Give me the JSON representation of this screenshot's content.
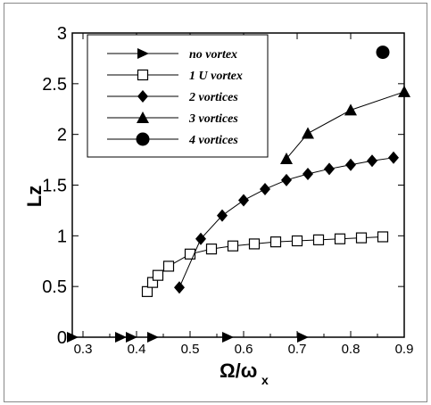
{
  "chart_data": {
    "type": "line",
    "title": "",
    "xlabel": "Ω/ω",
    "xlabel_sub": "x",
    "ylabel": "Lz",
    "xlim": [
      0.28,
      0.9
    ],
    "ylim": [
      0,
      3
    ],
    "xticks": [
      "0.3",
      "0.4",
      "0.5",
      "0.6",
      "0.7",
      "0.8",
      "0.9"
    ],
    "yticks": [
      "0",
      "0.5",
      "1",
      "1.5",
      "2",
      "2.5",
      "3"
    ],
    "grid": false,
    "legend_position": "top-left",
    "series": [
      {
        "name": "no vortex",
        "marker": "triangle-right",
        "x": [
          0.28,
          0.37,
          0.39,
          0.43,
          0.57,
          0.71
        ],
        "y": [
          0,
          0,
          0,
          0,
          0,
          0
        ]
      },
      {
        "name": "1 U vortex",
        "marker": "square-open",
        "x": [
          0.42,
          0.43,
          0.44,
          0.46,
          0.5,
          0.54,
          0.58,
          0.62,
          0.66,
          0.7,
          0.74,
          0.78,
          0.82,
          0.86
        ],
        "y": [
          0.45,
          0.54,
          0.61,
          0.7,
          0.82,
          0.87,
          0.9,
          0.92,
          0.94,
          0.95,
          0.96,
          0.97,
          0.98,
          0.99
        ]
      },
      {
        "name": "2 vortices",
        "marker": "diamond",
        "x": [
          0.48,
          0.52,
          0.56,
          0.6,
          0.64,
          0.68,
          0.72,
          0.76,
          0.8,
          0.84,
          0.88
        ],
        "y": [
          0.49,
          0.97,
          1.2,
          1.35,
          1.46,
          1.55,
          1.61,
          1.66,
          1.7,
          1.74,
          1.77
        ]
      },
      {
        "name": "3 vortices",
        "marker": "triangle-up",
        "x": [
          0.68,
          0.72,
          0.8,
          0.9
        ],
        "y": [
          1.76,
          2.01,
          2.24,
          2.42
        ]
      },
      {
        "name": "4 vortices",
        "marker": "circle",
        "x": [
          0.86
        ],
        "y": [
          2.81
        ]
      }
    ]
  }
}
